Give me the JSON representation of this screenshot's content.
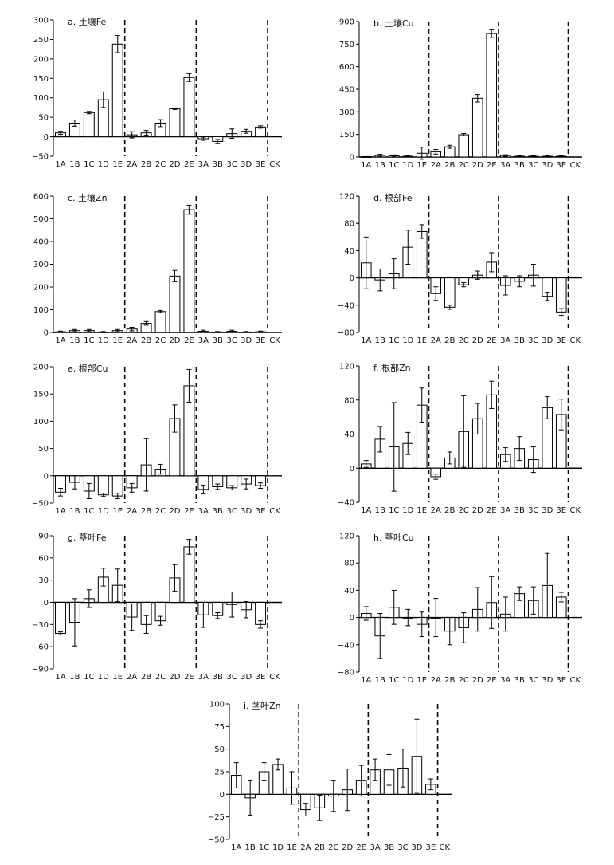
{
  "chart_data": [
    {
      "type": "bar",
      "title": "a. 土壤Fe",
      "categories": [
        "1A",
        "1B",
        "1C",
        "1D",
        "1E",
        "2A",
        "2B",
        "2C",
        "2D",
        "2E",
        "3A",
        "3B",
        "3C",
        "3D",
        "3E",
        "CK"
      ],
      "values": [
        10,
        35,
        62,
        95,
        238,
        5,
        10,
        35,
        72,
        152,
        -5,
        -12,
        8,
        14,
        25,
        0
      ],
      "errors": [
        4,
        8,
        3,
        20,
        22,
        8,
        6,
        9,
        2,
        10,
        4,
        5,
        12,
        5,
        3,
        0
      ],
      "yticks": [
        -50,
        0,
        50,
        100,
        150,
        200,
        250,
        300
      ],
      "ytick_labels": [
        "−50",
        "0",
        "50",
        "100",
        "150",
        "200",
        "250",
        "300"
      ],
      "ylim": [
        -50,
        300
      ],
      "group_dividers_after": [
        "1E",
        "2E",
        "3E"
      ]
    },
    {
      "type": "bar",
      "title": "b. 土壤Cu",
      "categories": [
        "1A",
        "1B",
        "1C",
        "1D",
        "1E",
        "2A",
        "2B",
        "2C",
        "2D",
        "2E",
        "3A",
        "3B",
        "3C",
        "3D",
        "3E",
        "CK"
      ],
      "values": [
        2,
        10,
        8,
        5,
        25,
        35,
        68,
        148,
        390,
        820,
        10,
        5,
        5,
        5,
        5,
        0
      ],
      "errors": [
        1,
        8,
        6,
        5,
        40,
        15,
        10,
        8,
        25,
        25,
        5,
        3,
        3,
        3,
        3,
        0
      ],
      "yticks": [
        0,
        150,
        300,
        450,
        600,
        750,
        900
      ],
      "ytick_labels": [
        "0",
        "150",
        "300",
        "450",
        "600",
        "750",
        "900"
      ],
      "ylim": [
        0,
        900
      ],
      "group_dividers_after": [
        "1E",
        "2E",
        "3E"
      ]
    },
    {
      "type": "bar",
      "title": "c. 土壤Zn",
      "categories": [
        "1A",
        "1B",
        "1C",
        "1D",
        "1E",
        "2A",
        "2B",
        "2C",
        "2D",
        "2E",
        "3A",
        "3B",
        "3C",
        "3D",
        "3E",
        "CK"
      ],
      "values": [
        3,
        8,
        8,
        2,
        8,
        15,
        40,
        92,
        248,
        540,
        5,
        2,
        5,
        2,
        3,
        0
      ],
      "errors": [
        3,
        5,
        5,
        2,
        5,
        8,
        8,
        5,
        25,
        20,
        5,
        2,
        5,
        2,
        3,
        0
      ],
      "yticks": [
        0,
        100,
        200,
        300,
        400,
        500,
        600
      ],
      "ytick_labels": [
        "0",
        "100",
        "200",
        "300",
        "400",
        "500",
        "600"
      ],
      "ylim": [
        0,
        600
      ],
      "group_dividers_after": [
        "1E",
        "2E",
        "3E"
      ]
    },
    {
      "type": "bar",
      "title": "d. 根部Fe",
      "categories": [
        "1A",
        "1B",
        "1C",
        "1D",
        "1E",
        "2A",
        "2B",
        "2C",
        "2D",
        "2E",
        "3A",
        "3B",
        "3C",
        "3D",
        "3E",
        "CK"
      ],
      "values": [
        22,
        -3,
        6,
        45,
        68,
        -23,
        -43,
        -10,
        4,
        23,
        -11,
        -5,
        4,
        -27,
        -50,
        0
      ],
      "errors": [
        38,
        16,
        22,
        25,
        10,
        10,
        3,
        3,
        6,
        14,
        14,
        8,
        16,
        6,
        5,
        0
      ],
      "yticks": [
        -80,
        -40,
        0,
        40,
        80,
        120
      ],
      "ytick_labels": [
        "−80",
        "−40",
        "0",
        "40",
        "80",
        "120"
      ],
      "ylim": [
        -80,
        120
      ],
      "group_dividers_after": [
        "1E",
        "2E",
        "3E"
      ]
    },
    {
      "type": "bar",
      "title": "e. 根部Cu",
      "categories": [
        "1A",
        "1B",
        "1C",
        "1D",
        "1E",
        "2A",
        "2B",
        "2C",
        "2D",
        "2E",
        "3A",
        "3B",
        "3C",
        "3D",
        "3E",
        "CK"
      ],
      "values": [
        -30,
        -12,
        -28,
        -35,
        -37,
        -22,
        20,
        12,
        105,
        165,
        -25,
        -20,
        -22,
        -15,
        -18,
        0
      ],
      "errors": [
        7,
        12,
        14,
        3,
        5,
        8,
        48,
        9,
        25,
        30,
        8,
        5,
        4,
        9,
        5,
        0
      ],
      "yticks": [
        -50,
        0,
        50,
        100,
        150,
        200
      ],
      "ytick_labels": [
        "−50",
        "0",
        "50",
        "100",
        "150",
        "200"
      ],
      "ylim": [
        -50,
        200
      ],
      "group_dividers_after": [
        "1E",
        "2E",
        "3E"
      ]
    },
    {
      "type": "bar",
      "title": "f. 根部Zn",
      "categories": [
        "1A",
        "1B",
        "1C",
        "1D",
        "1E",
        "2A",
        "2B",
        "2C",
        "2D",
        "2E",
        "3A",
        "3B",
        "3C",
        "3D",
        "3E",
        "CK"
      ],
      "values": [
        5,
        34,
        25,
        29,
        74,
        -10,
        12,
        43,
        58,
        86,
        16,
        23,
        10,
        71,
        63,
        0
      ],
      "errors": [
        4,
        15,
        52,
        13,
        20,
        3,
        7,
        42,
        18,
        16,
        8,
        14,
        15,
        13,
        18,
        0
      ],
      "yticks": [
        -40,
        0,
        40,
        80,
        120
      ],
      "ytick_labels": [
        "−40",
        "0",
        "40",
        "80",
        "120"
      ],
      "ylim": [
        -40,
        120
      ],
      "group_dividers_after": [
        "1E",
        "2E",
        "3E"
      ]
    },
    {
      "type": "bar",
      "title": "g. 茎叶Fe",
      "categories": [
        "1A",
        "1B",
        "1C",
        "1D",
        "1E",
        "2A",
        "2B",
        "2C",
        "2D",
        "2E",
        "3A",
        "3B",
        "3C",
        "3D",
        "3E",
        "CK"
      ],
      "values": [
        -42,
        -27,
        5,
        34,
        23,
        -20,
        -30,
        -25,
        33,
        75,
        -17,
        -18,
        -3,
        -10,
        -30,
        0
      ],
      "errors": [
        2,
        32,
        12,
        12,
        22,
        18,
        12,
        6,
        18,
        10,
        17,
        4,
        17,
        11,
        5,
        0
      ],
      "yticks": [
        -90,
        -60,
        -30,
        0,
        30,
        60,
        90
      ],
      "ytick_labels": [
        "−90",
        "−60",
        "−30",
        "0",
        "30",
        "60",
        "90"
      ],
      "ylim": [
        -90,
        90
      ],
      "group_dividers_after": [
        "1E",
        "2E",
        "3E"
      ]
    },
    {
      "type": "bar",
      "title": "h. 茎叶Cu",
      "categories": [
        "1A",
        "1B",
        "1C",
        "1D",
        "1E",
        "2A",
        "2B",
        "2C",
        "2D",
        "2E",
        "3A",
        "3B",
        "3C",
        "3D",
        "3E",
        "CK"
      ],
      "values": [
        6,
        -27,
        15,
        0,
        -10,
        0,
        -20,
        -15,
        12,
        22,
        5,
        35,
        25,
        47,
        30,
        0
      ],
      "errors": [
        10,
        33,
        25,
        12,
        18,
        28,
        20,
        22,
        32,
        38,
        25,
        10,
        20,
        47,
        7,
        0
      ],
      "yticks": [
        -80,
        -40,
        0,
        40,
        80,
        120
      ],
      "ytick_labels": [
        "−80",
        "−40",
        "0",
        "40",
        "80",
        "120"
      ],
      "ylim": [
        -80,
        120
      ],
      "group_dividers_after": [
        "1E",
        "2E",
        "3E"
      ]
    },
    {
      "type": "bar",
      "title": "i. 茎叶Zn",
      "categories": [
        "1A",
        "1B",
        "1C",
        "1D",
        "1E",
        "2A",
        "2B",
        "2C",
        "2D",
        "2E",
        "3A",
        "3B",
        "3C",
        "3D",
        "3E",
        "CK"
      ],
      "values": [
        21,
        -4,
        25,
        33,
        7,
        -17,
        -15,
        -2,
        5,
        15,
        27,
        27,
        29,
        42,
        11,
        0
      ],
      "errors": [
        14,
        19,
        10,
        6,
        18,
        7,
        14,
        17,
        23,
        17,
        12,
        17,
        21,
        41,
        6,
        0
      ],
      "yticks": [
        -50,
        -25,
        0,
        25,
        50,
        75,
        100
      ],
      "ytick_labels": [
        "−50",
        "−25",
        "0",
        "25",
        "50",
        "75",
        "100"
      ],
      "ylim": [
        -50,
        100
      ],
      "group_dividers_after": [
        "1E",
        "2E",
        "3E"
      ]
    }
  ]
}
